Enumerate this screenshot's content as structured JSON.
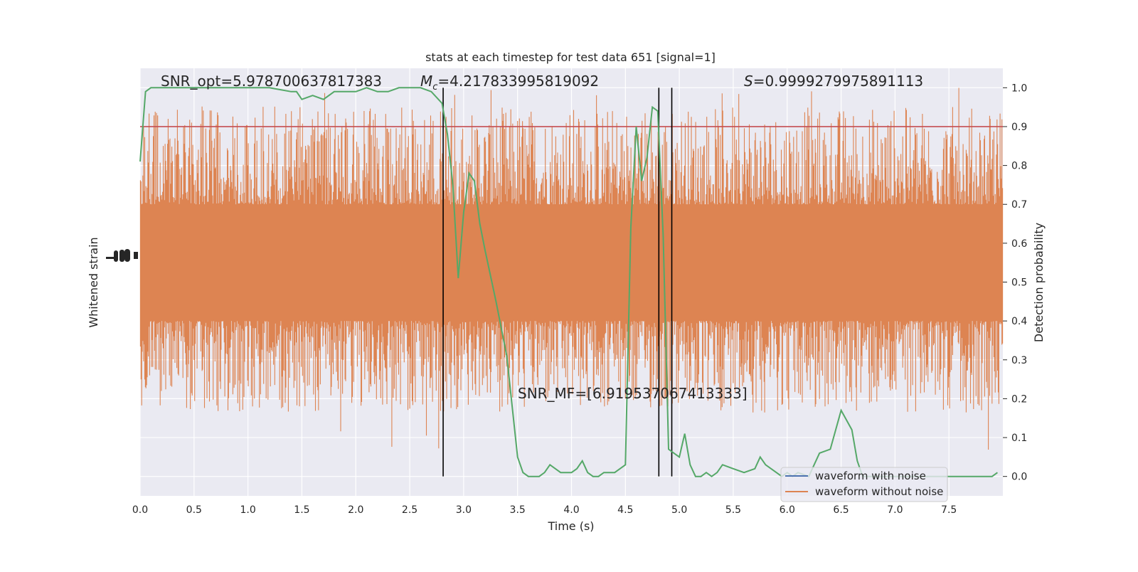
{
  "chart_data": {
    "type": "line",
    "title": "stats at each timestep for test data 651 [signal=1]",
    "xlabel": "Time (s)",
    "ylabel_left": "Whitened strain",
    "ylabel_right": "Detection probability",
    "xlim": [
      0,
      8
    ],
    "ylim_right": [
      -0.05,
      1.05
    ],
    "x_ticks": [
      0.0,
      0.5,
      1.0,
      1.5,
      2.0,
      2.5,
      3.0,
      3.5,
      4.0,
      4.5,
      5.0,
      5.5,
      6.0,
      6.5,
      7.0,
      7.5
    ],
    "x_tick_labels": [
      "0.0",
      "0.5",
      "1.0",
      "1.5",
      "2.0",
      "2.5",
      "3.0",
      "3.5",
      "4.0",
      "4.5",
      "5.0",
      "5.5",
      "6.0",
      "6.5",
      "7.0",
      "7.5"
    ],
    "y_right_ticks": [
      0.0,
      0.1,
      0.2,
      0.3,
      0.4,
      0.5,
      0.6,
      0.7,
      0.8,
      0.9,
      1.0
    ],
    "y_right_tick_labels": [
      "0.0",
      "0.1",
      "0.2",
      "0.3",
      "0.4",
      "0.5",
      "0.6",
      "0.7",
      "0.8",
      "0.9",
      "1.0"
    ],
    "grid": true,
    "legend_position": "lower-right",
    "series": [
      {
        "name": "waveform with noise",
        "color": "#4c72b0",
        "axis": "left",
        "values_note": ""
      },
      {
        "name": "waveform without noise",
        "color": "#dd8452",
        "axis": "left",
        "band_detection_scale": {
          "dense_low": 0.4,
          "dense_high": 0.7,
          "spike_low": 0.06,
          "spike_high": 1.0
        }
      },
      {
        "name": "",
        "color": "#55a868",
        "axis": "right",
        "x": [
          0.0,
          0.05,
          0.1,
          0.2,
          0.4,
          0.6,
          0.8,
          1.0,
          1.2,
          1.4,
          1.45,
          1.5,
          1.6,
          1.7,
          1.8,
          1.85,
          1.9,
          2.0,
          2.1,
          2.2,
          2.3,
          2.4,
          2.5,
          2.6,
          2.7,
          2.8,
          2.85,
          2.9,
          2.95,
          3.0,
          3.05,
          3.1,
          3.15,
          3.2,
          3.3,
          3.4,
          3.5,
          3.55,
          3.6,
          3.7,
          3.75,
          3.8,
          3.85,
          3.9,
          4.0,
          4.05,
          4.1,
          4.15,
          4.2,
          4.25,
          4.3,
          4.35,
          4.4,
          4.45,
          4.5,
          4.55,
          4.6,
          4.65,
          4.7,
          4.75,
          4.8,
          4.85,
          4.9,
          4.95,
          5.0,
          5.05,
          5.1,
          5.15,
          5.2,
          5.25,
          5.3,
          5.35,
          5.4,
          5.5,
          5.6,
          5.7,
          5.75,
          5.8,
          5.9,
          5.95,
          6.0,
          6.05,
          6.1,
          6.2,
          6.3,
          6.4,
          6.5,
          6.6,
          6.65,
          6.7,
          6.75,
          6.8,
          6.9,
          7.0,
          7.2,
          7.4,
          7.6,
          7.8,
          7.9,
          7.95
        ],
        "y": [
          0.81,
          0.99,
          1.0,
          1.0,
          1.0,
          1.0,
          1.0,
          1.0,
          1.0,
          0.99,
          0.99,
          0.97,
          0.98,
          0.97,
          0.99,
          0.99,
          0.99,
          0.99,
          1.0,
          0.99,
          0.99,
          1.0,
          1.0,
          1.0,
          0.99,
          0.96,
          0.88,
          0.75,
          0.51,
          0.68,
          0.78,
          0.76,
          0.65,
          0.58,
          0.45,
          0.31,
          0.05,
          0.01,
          0.0,
          0.0,
          0.01,
          0.03,
          0.02,
          0.01,
          0.01,
          0.02,
          0.04,
          0.01,
          0.0,
          0.0,
          0.01,
          0.01,
          0.01,
          0.02,
          0.03,
          0.64,
          0.9,
          0.76,
          0.82,
          0.95,
          0.94,
          0.62,
          0.07,
          0.06,
          0.05,
          0.11,
          0.03,
          0.0,
          0.0,
          0.01,
          0.0,
          0.01,
          0.03,
          0.02,
          0.01,
          0.02,
          0.05,
          0.03,
          0.01,
          0.0,
          0.01,
          0.0,
          0.01,
          0.0,
          0.06,
          0.07,
          0.17,
          0.12,
          0.04,
          0.0,
          0.0,
          0.0,
          0.0,
          0.0,
          0.0,
          0.0,
          0.0,
          0.0,
          0.0,
          0.01
        ]
      }
    ],
    "threshold": {
      "value": 0.9,
      "color": "#c44e52"
    },
    "vertical_markers": [
      2.81,
      4.81,
      4.93
    ],
    "annotations": {
      "snr_opt": "SNR_opt=5.978700637817383",
      "mc_symbol": "M",
      "mc_sub": "c",
      "mc_value": "=4.217833995819092",
      "s_symbol": "S",
      "s_value": "=0.9999279975891113",
      "snr_mf": "SNR_MF=[6.919537067413333]"
    },
    "legend": {
      "items": [
        "waveform with noise",
        "waveform without noise"
      ]
    }
  }
}
